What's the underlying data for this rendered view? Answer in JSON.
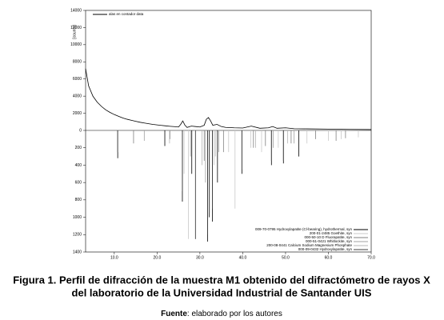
{
  "chart_data": {
    "type": "line",
    "y_axis_label": "[counts]",
    "xlim": [
      3.3,
      70
    ],
    "ylim": [
      0,
      14000
    ],
    "y2lim": [
      0,
      1400
    ],
    "y2_direction": "down",
    "xticks": [
      {
        "value": 10,
        "label": "10.0"
      },
      {
        "value": 20,
        "label": "20.0"
      },
      {
        "value": 30,
        "label": "30.0"
      },
      {
        "value": 40,
        "label": "40.0"
      },
      {
        "value": 50,
        "label": "50.0"
      },
      {
        "value": 60,
        "label": "60.0"
      },
      {
        "value": 70,
        "label": "70.0"
      }
    ],
    "yticks": [
      0,
      2000,
      4000,
      6000,
      8000,
      10000,
      12000,
      14000
    ],
    "y2ticks": [
      200,
      400,
      600,
      800,
      1000,
      1200,
      1400
    ],
    "series": [
      {
        "name": "alas en contador data",
        "color": "#000000",
        "x": [
          3.3,
          4,
          5,
          6,
          7,
          8,
          9,
          10,
          11,
          12,
          13,
          14,
          15,
          16,
          17,
          18,
          19,
          20,
          21,
          22,
          23,
          24,
          25,
          25.5,
          26,
          26.5,
          27,
          28,
          29,
          30,
          31,
          31.5,
          32,
          32.5,
          33,
          34,
          35,
          36,
          38,
          40,
          42,
          44,
          46,
          47,
          48,
          50,
          52,
          55,
          60,
          65,
          70
        ],
        "values": [
          7200,
          5200,
          4000,
          3300,
          2800,
          2400,
          2100,
          1850,
          1650,
          1450,
          1300,
          1180,
          1060,
          950,
          860,
          780,
          700,
          640,
          580,
          530,
          480,
          440,
          400,
          700,
          1100,
          600,
          350,
          500,
          450,
          400,
          600,
          1300,
          1500,
          1100,
          600,
          700,
          450,
          350,
          300,
          280,
          500,
          250,
          300,
          450,
          250,
          300,
          200,
          180,
          150,
          120,
          100
        ]
      }
    ],
    "reference_patterns": [
      {
        "name": "009-70-0795 Hydroxylapatite (Cl-bearing), hydrothermal, syn",
        "color": "#000000",
        "axis": "y2",
        "x": [
          10.8,
          21.8,
          25.9,
          28.1,
          29.0,
          31.8,
          32.2,
          32.9,
          34.1,
          39.8,
          46.7,
          49.5,
          53.1
        ],
        "values": [
          320,
          180,
          820,
          500,
          1250,
          1280,
          1000,
          1050,
          600,
          500,
          400,
          380,
          300
        ]
      },
      {
        "name": "200-01-2485 Goethite, syn",
        "color": "#c8c8c8",
        "axis": "y2",
        "x": [
          26.3,
          27.3,
          28.9,
          33.3,
          36.7,
          38.2,
          41.9,
          44.4,
          48.3,
          55.0,
          60.0,
          63.0,
          67.0
        ],
        "values": [
          500,
          1250,
          1250,
          400,
          250,
          900,
          200,
          250,
          200,
          150,
          120,
          100,
          80
        ]
      },
      {
        "name": "000-50-10 D Fluorapatite, syn",
        "color": "#808080",
        "axis": "y2",
        "x": [
          14.5,
          23.0,
          31.0,
          35.5,
          42.5,
          45.3,
          51.3,
          57.0,
          61.8,
          64.0
        ],
        "values": [
          150,
          100,
          350,
          250,
          200,
          180,
          150,
          100,
          120,
          90
        ]
      },
      {
        "name": "000-51-0421 Whitlockite, syn",
        "color": "#a0a0a0",
        "axis": "y2",
        "x": [
          17.0,
          27.8,
          31.3,
          34.4,
          47.1,
          52.0
        ],
        "values": [
          120,
          300,
          600,
          250,
          200,
          150
        ]
      },
      {
        "name": "200-08-0441 Calcium Sodium Magnesium Phosphate",
        "color": "#b4b4b4",
        "axis": "y2",
        "x": [
          22.9,
          30.5,
          33.6,
          43.0,
          50.5
        ],
        "values": [
          150,
          400,
          300,
          200,
          150
        ]
      },
      {
        "name": "000-09-0432 Hydroxylapatite, syn",
        "color": "#404040",
        "axis": "y2",
        "x": [
          10.8,
          25.9,
          31.8,
          32.2,
          32.9,
          39.8,
          46.7,
          49.5
        ],
        "values": [
          250,
          700,
          1200,
          950,
          900,
          450,
          350,
          350
        ]
      }
    ]
  },
  "caption": {
    "line1": "Figura 1. Perfil de difracción de la muestra M1 obtenido del difractómetro de rayos X",
    "line2": "del laboratorio de la Universidad Industrial de Santander UIS",
    "source_label": "Fuente",
    "source_text": ": elaborado por los autores"
  }
}
